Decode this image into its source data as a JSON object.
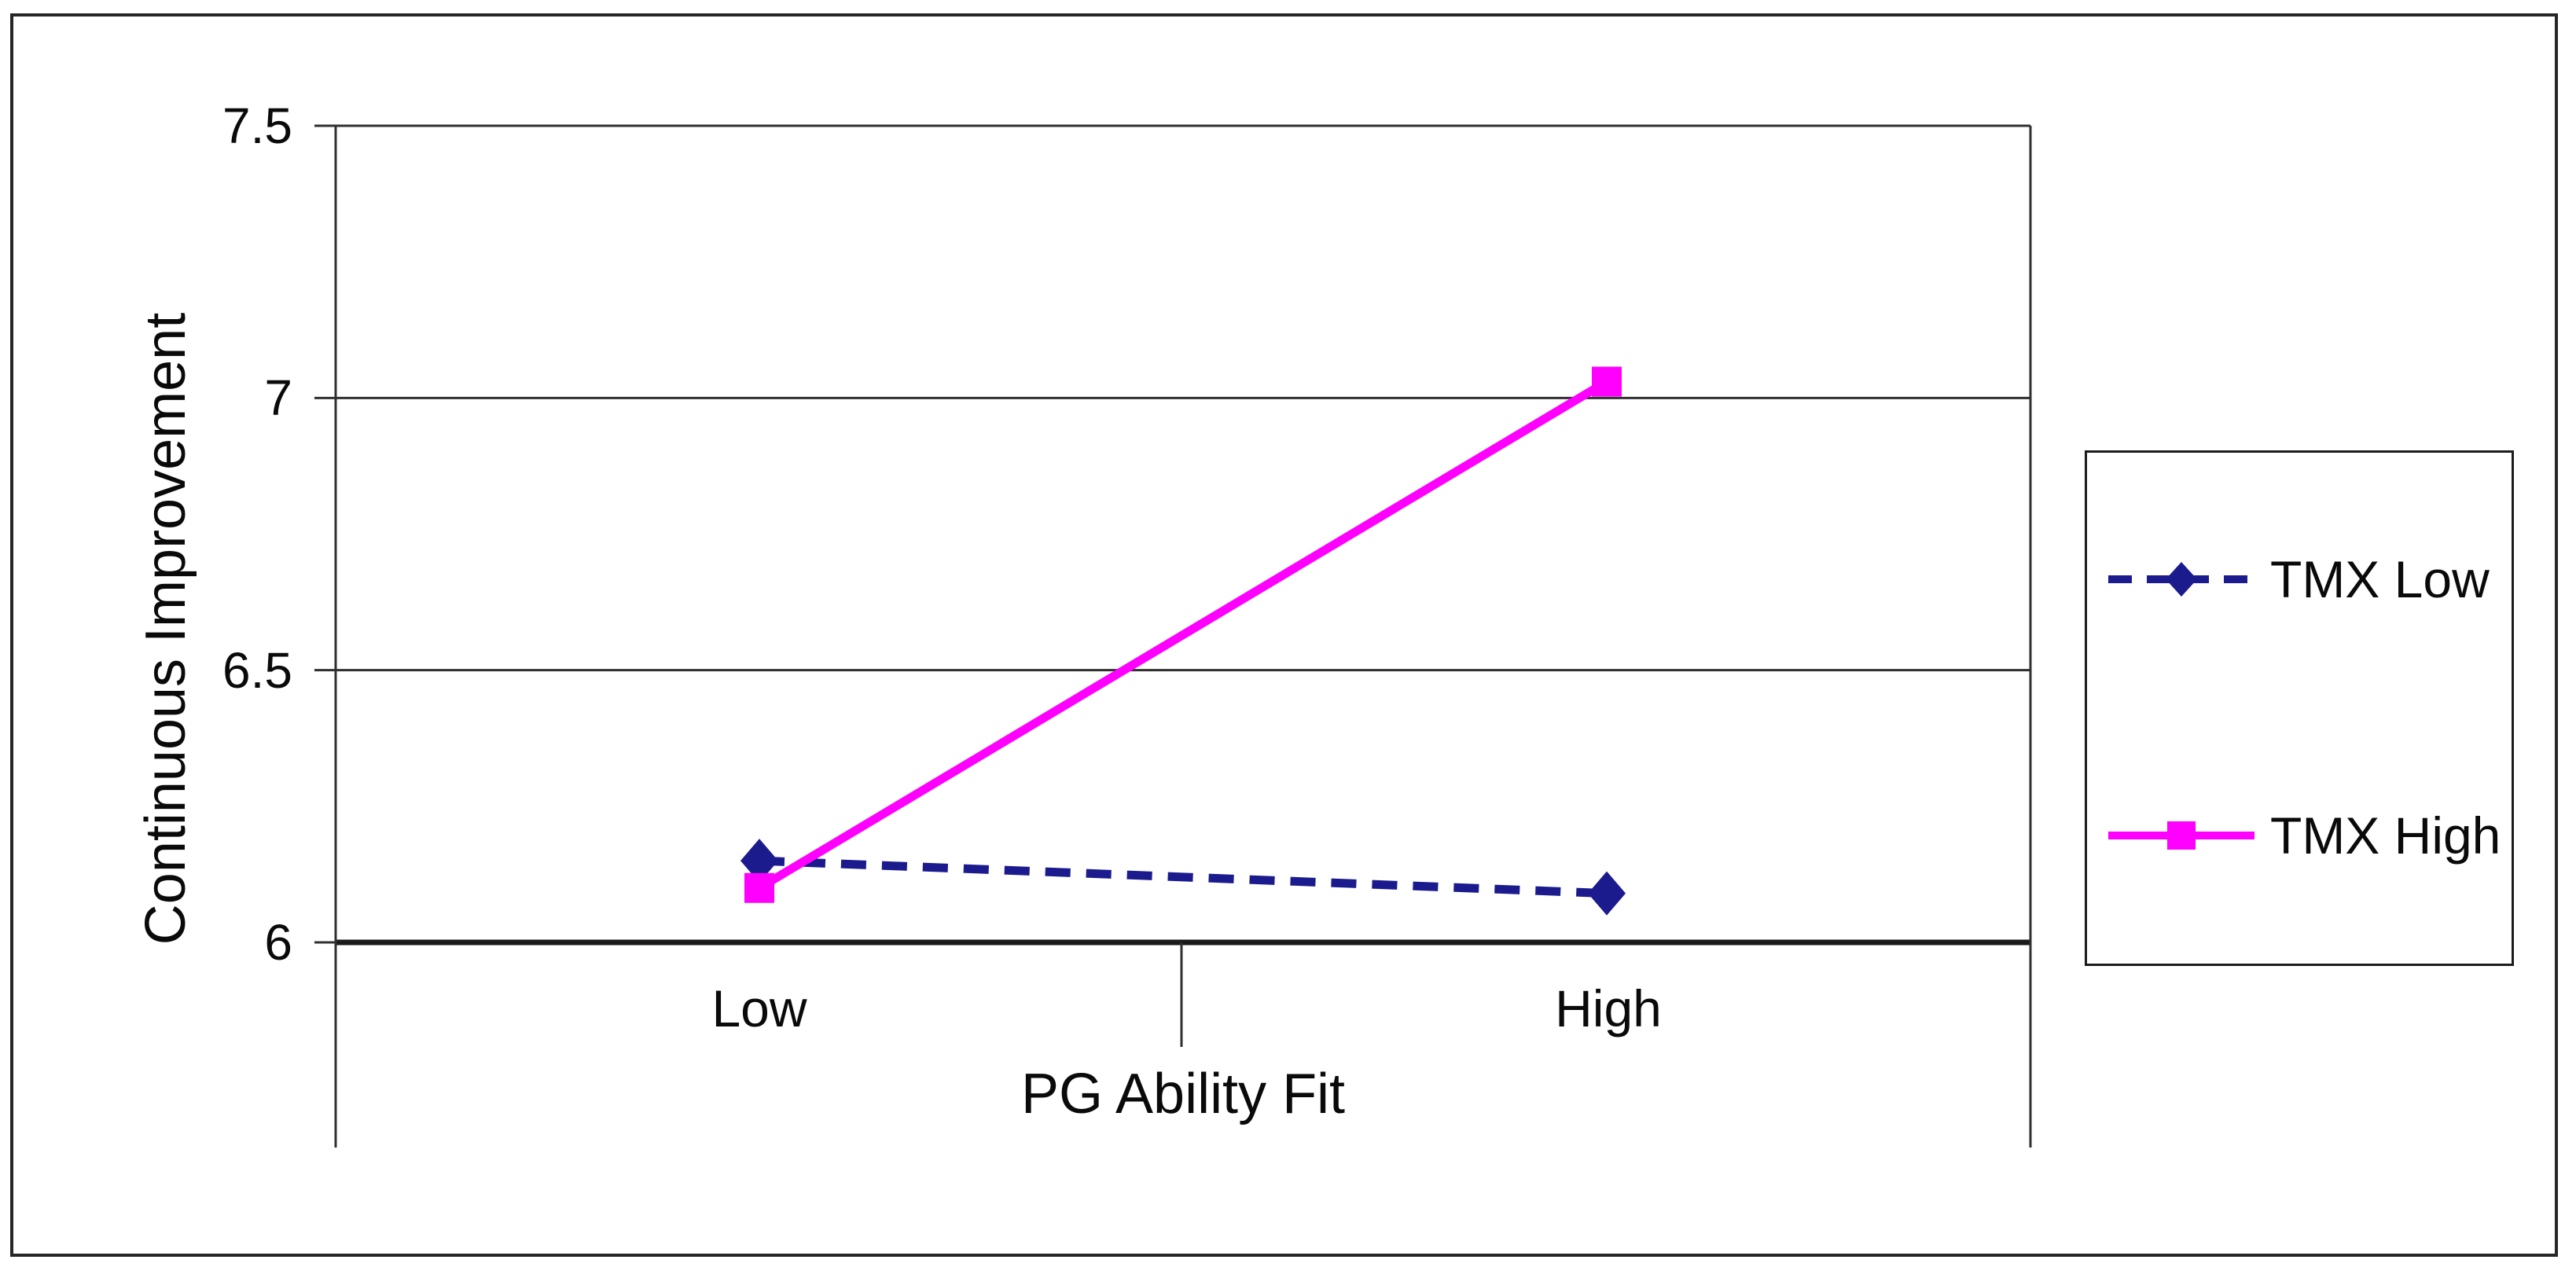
{
  "figure": {
    "background": "#ffffff",
    "border_color": "#262626"
  },
  "colors": {
    "grid": "#303030",
    "axis": "#1a1a1a",
    "text": "#0a0a0a",
    "navy": "#1b1b8e",
    "magenta": "#ff00ff"
  },
  "chart_data": {
    "type": "line",
    "title": "",
    "xlabel": "PG Ability Fit",
    "ylabel": "Continuous Improvement",
    "categories": [
      "Low",
      "High"
    ],
    "series": [
      {
        "name": "TMX Low",
        "values": [
          6.15,
          6.09
        ],
        "color": "#1b1b8e",
        "line_style": "dashed",
        "marker": "diamond"
      },
      {
        "name": "TMX High",
        "values": [
          6.1,
          7.03
        ],
        "color": "#ff00ff",
        "line_style": "solid",
        "marker": "square"
      }
    ],
    "ylim": [
      6,
      7.5
    ],
    "yticks": [
      7.5,
      7,
      6.5,
      6
    ],
    "ytick_labels": [
      "7.5",
      "7",
      "6.5",
      "6"
    ],
    "grid": true,
    "legend_position": "right"
  }
}
